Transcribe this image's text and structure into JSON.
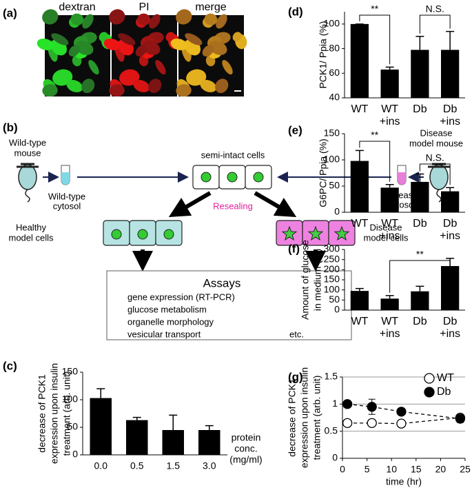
{
  "panel_labels": [
    "(a)",
    "(b)",
    "(c)",
    "(d)",
    "(e)",
    "(f)",
    "(g)"
  ],
  "images": {
    "labels": [
      "dextran",
      "PI",
      "merge"
    ]
  },
  "diagram": {
    "wild_type_mouse": [
      "Wild-type",
      "mouse"
    ],
    "wild_type_cytosol": [
      "Wild-type",
      "cytosol"
    ],
    "semi_intact": "semi-intact cells",
    "disease_mouse": [
      "Disease",
      "model mouse"
    ],
    "disease_cytosol": [
      "Disease",
      "cytosol"
    ],
    "resealing": "Resealing",
    "healthy_cells": [
      "Healthy",
      "model cells"
    ],
    "disease_cells": [
      "Disease",
      "model cells"
    ],
    "assays_title": "Assays",
    "assays": [
      "gene expression (RT-PCR)",
      "glucose metabolism",
      "organelle morphology",
      "vesicular transport"
    ],
    "etc": "etc."
  },
  "chart_data": [
    {
      "type": "bar",
      "categories": [
        "0.0",
        "0.5",
        "1.5",
        "3.0"
      ],
      "values": [
        103,
        63,
        45,
        45
      ],
      "errors": [
        17,
        5,
        27,
        8
      ],
      "ylim": [
        0,
        150
      ],
      "yticks": [
        0,
        50,
        100,
        150
      ],
      "color": "#000000",
      "ylabel": [
        "decrease of PCK1",
        "expression upon insulin",
        "treatment (arb. unit)"
      ],
      "xlabel": [
        "protein",
        "conc.",
        "(mg/ml)"
      ]
    },
    {
      "type": "bar",
      "categories": [
        [
          "WT"
        ],
        [
          "WT",
          "+ins"
        ],
        [
          "Db"
        ],
        [
          "Db",
          "+ins"
        ]
      ],
      "values": [
        100,
        63,
        79,
        79
      ],
      "errors": [
        0,
        2,
        11,
        15
      ],
      "ylim": [
        40,
        110
      ],
      "yticks": [
        40,
        60,
        80,
        100
      ],
      "color": "#000000",
      "ylabel": [
        "PCK1/ Ppia (%)"
      ],
      "annotations": [
        {
          "text": "**"
        },
        {
          "text": "N.S."
        }
      ]
    },
    {
      "type": "bar",
      "categories": [
        [
          "WT"
        ],
        [
          "WT",
          "+ins"
        ],
        [
          "Db"
        ],
        [
          "Db",
          "+ins"
        ]
      ],
      "values": [
        98,
        47,
        58,
        40
      ],
      "errors": [
        20,
        6,
        15,
        7
      ],
      "ylim": [
        0,
        150
      ],
      "yticks": [
        0,
        50,
        100,
        150
      ],
      "color": "#000000",
      "ylabel": [
        "G6PC/ Ppia (%)"
      ],
      "annotations": [
        {
          "text": "**"
        },
        {
          "text": "N.S."
        }
      ]
    },
    {
      "type": "bar",
      "categories": [
        [
          "WT"
        ],
        [
          "WT",
          "+ins"
        ],
        [
          "Db"
        ],
        [
          "Db",
          "+ins"
        ]
      ],
      "values": [
        95,
        57,
        93,
        218
      ],
      "errors": [
        12,
        15,
        25,
        38
      ],
      "ylim": [
        0,
        300
      ],
      "yticks": [
        0,
        50,
        100,
        150,
        200,
        250,
        300
      ],
      "color": "#000000",
      "ylabel": [
        "Amount of glucose",
        "in medium (%)"
      ],
      "annotations": [
        {
          "text": "**"
        }
      ]
    },
    {
      "type": "line",
      "x": [
        1,
        6,
        12,
        24
      ],
      "series": [
        {
          "name": "WT",
          "color": "#ffffff",
          "values": [
            0.65,
            0.65,
            0.64,
            0.75
          ],
          "errors": [
            0.03,
            0.03,
            0.03,
            0.05
          ]
        },
        {
          "name": "Db",
          "color": "#000000",
          "values": [
            1,
            0.95,
            0.86,
            0.73
          ],
          "errors": [
            0.06,
            0.14,
            0.05,
            0.07
          ]
        }
      ],
      "xlim": [
        0,
        25
      ],
      "xticks": [
        0,
        5,
        10,
        15,
        20,
        25
      ],
      "ylim": [
        0,
        1.5
      ],
      "yticks": [
        0,
        0.5,
        1,
        1.5
      ],
      "grid": true,
      "legend": "upper right",
      "ylabel": [
        "decrease of PCK1",
        "expression upon insulin",
        "treatment (arb. unit)"
      ],
      "xlabel": [
        "time (hr)"
      ]
    }
  ]
}
